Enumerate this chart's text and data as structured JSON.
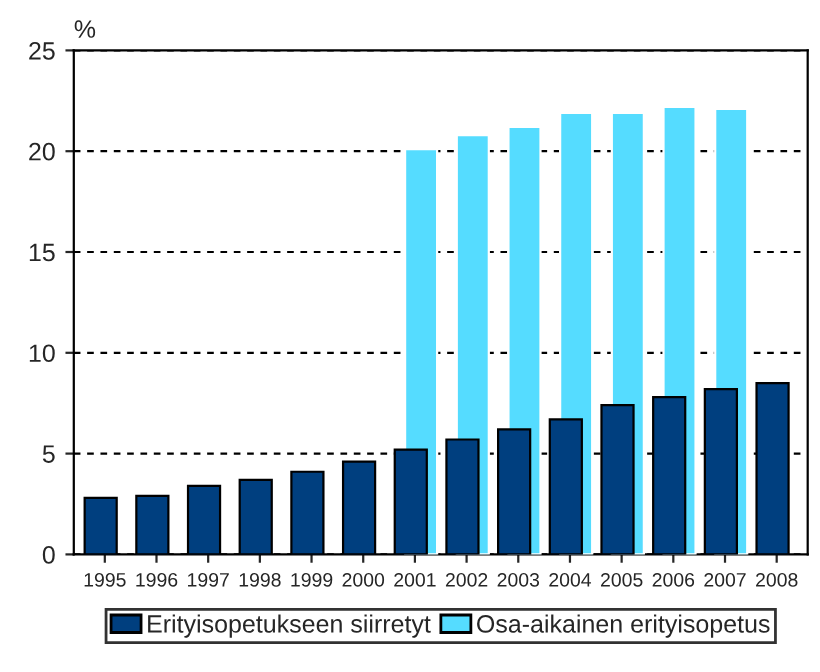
{
  "chart_data": {
    "type": "bar",
    "ylabel": "%",
    "categories": [
      "1995",
      "1996",
      "1997",
      "1998",
      "1999",
      "2000",
      "2001",
      "2002",
      "2003",
      "2004",
      "2005",
      "2006",
      "2007",
      "2008"
    ],
    "series": [
      {
        "name": "Erityisopetukseen siirretyt",
        "color": "#003f7f",
        "values": [
          2.8,
          2.9,
          3.4,
          3.7,
          4.1,
          4.6,
          5.2,
          5.7,
          6.2,
          6.7,
          7.4,
          7.8,
          8.2,
          8.5
        ]
      },
      {
        "name": "Osa-aikainen erityisopetus",
        "color": "#55dcff",
        "values": [
          null,
          null,
          null,
          null,
          null,
          null,
          20.1,
          20.8,
          21.2,
          21.9,
          21.9,
          22.2,
          22.1,
          null
        ]
      }
    ],
    "ylim": [
      0,
      25
    ],
    "yticks": [
      0,
      5,
      10,
      15,
      20,
      25
    ],
    "grid": "y",
    "legend": "bottom"
  }
}
